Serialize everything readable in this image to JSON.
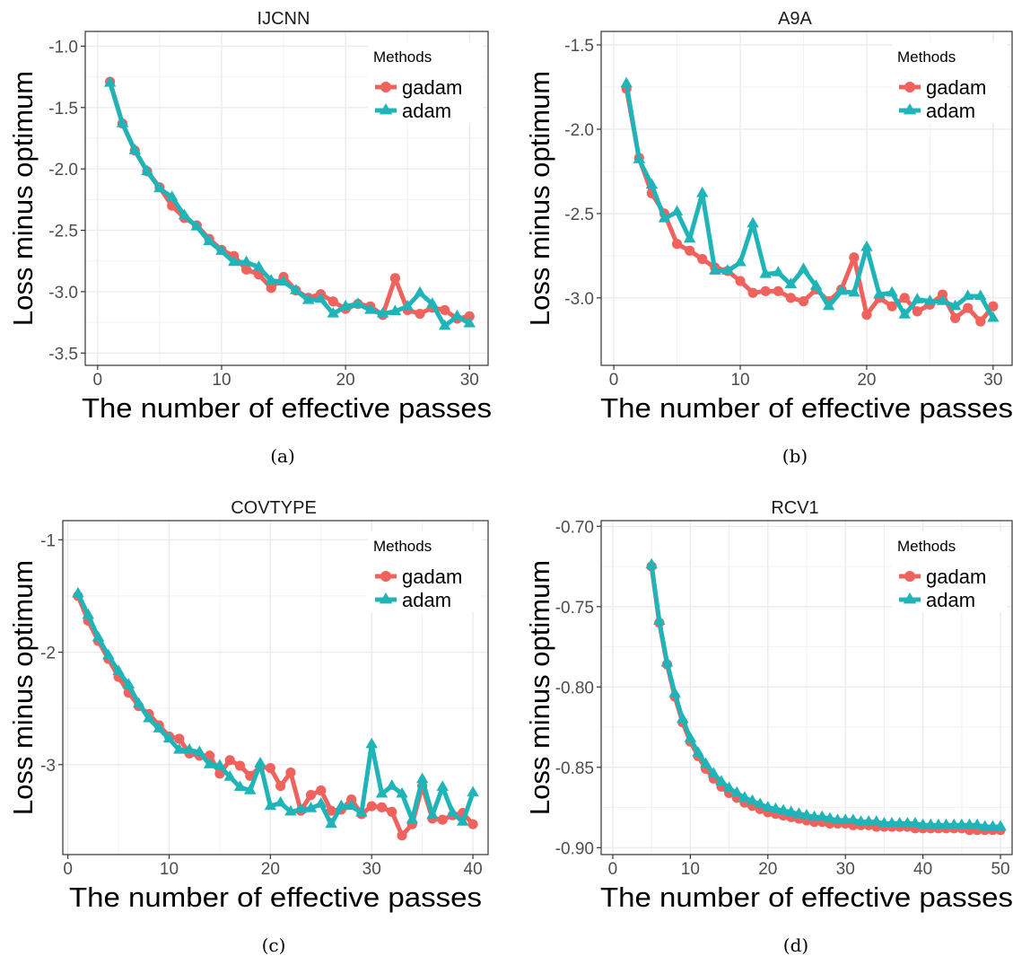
{
  "colors": {
    "gadam": "#F0625D",
    "adam": "#1FB5B8",
    "grid": "#EBEBEB",
    "panel_border": "#333333"
  },
  "legend": {
    "title": "Methods",
    "items": [
      {
        "label": "gadam",
        "shape": "circle",
        "color": "#F0625D"
      },
      {
        "label": "adam",
        "shape": "triangle",
        "color": "#1FB5B8"
      }
    ]
  },
  "chart_data": [
    {
      "type": "line",
      "title": "IJCNN",
      "caption": "(a)",
      "xlabel": "The number of effective passes",
      "ylabel": "Loss minus optimum",
      "xlim": [
        -1,
        31.5
      ],
      "ylim": [
        -3.6,
        -0.88
      ],
      "xticks": [
        0,
        10,
        20,
        30
      ],
      "xtick_labels": [
        "0",
        "10",
        "20",
        "30"
      ],
      "yticks": [
        -1.0,
        -1.5,
        -2.0,
        -2.5,
        -3.0,
        -3.5
      ],
      "ytick_labels": [
        "-1.0",
        "-1.5",
        "-2.0",
        "-2.5",
        "-3.0",
        "-3.5"
      ],
      "legend": "top-right",
      "grid": true,
      "x": [
        1,
        2,
        3,
        4,
        5,
        6,
        7,
        8,
        9,
        10,
        11,
        12,
        13,
        14,
        15,
        16,
        17,
        18,
        19,
        20,
        21,
        22,
        23,
        24,
        25,
        26,
        27,
        28,
        29,
        30
      ],
      "series": [
        {
          "name": "gadam",
          "values": [
            -1.29,
            -1.63,
            -1.85,
            -2.02,
            -2.15,
            -2.3,
            -2.4,
            -2.46,
            -2.57,
            -2.66,
            -2.71,
            -2.82,
            -2.86,
            -2.97,
            -2.88,
            -2.99,
            -3.05,
            -3.02,
            -3.08,
            -3.14,
            -3.1,
            -3.12,
            -3.19,
            -2.89,
            -3.15,
            -3.18,
            -3.13,
            -3.15,
            -3.22,
            -3.2
          ]
        },
        {
          "name": "adam",
          "values": [
            -1.3,
            -1.63,
            -1.85,
            -2.02,
            -2.16,
            -2.23,
            -2.38,
            -2.47,
            -2.59,
            -2.67,
            -2.76,
            -2.76,
            -2.8,
            -2.91,
            -2.92,
            -2.99,
            -3.07,
            -3.06,
            -3.18,
            -3.12,
            -3.1,
            -3.15,
            -3.18,
            -3.16,
            -3.12,
            -3.01,
            -3.1,
            -3.28,
            -3.2,
            -3.26
          ]
        }
      ]
    },
    {
      "type": "line",
      "title": "A9A",
      "caption": "(b)",
      "xlabel": "The number of effective passes",
      "ylabel": "Loss minus optimum",
      "xlim": [
        -1,
        31.5
      ],
      "ylim": [
        -3.4,
        -1.42
      ],
      "xticks": [
        0,
        10,
        20,
        30
      ],
      "xtick_labels": [
        "0",
        "10",
        "20",
        "30"
      ],
      "yticks": [
        -1.5,
        -2.0,
        -2.5,
        -3.0
      ],
      "ytick_labels": [
        "-1.5",
        "-2.0",
        "-2.5",
        "-3.0"
      ],
      "legend": "top-right",
      "grid": true,
      "x": [
        1,
        2,
        3,
        4,
        5,
        6,
        7,
        8,
        9,
        10,
        11,
        12,
        13,
        14,
        15,
        16,
        17,
        18,
        19,
        20,
        21,
        22,
        23,
        24,
        25,
        26,
        27,
        28,
        29,
        30
      ],
      "series": [
        {
          "name": "gadam",
          "values": [
            -1.76,
            -2.17,
            -2.38,
            -2.5,
            -2.68,
            -2.72,
            -2.77,
            -2.82,
            -2.84,
            -2.9,
            -2.97,
            -2.96,
            -2.96,
            -3.0,
            -3.02,
            -2.95,
            -3.02,
            -2.95,
            -2.76,
            -3.1,
            -3.0,
            -3.05,
            -3.0,
            -3.08,
            -3.04,
            -2.98,
            -3.12,
            -3.06,
            -3.14,
            -3.05
          ]
        },
        {
          "name": "adam",
          "values": [
            -1.73,
            -2.18,
            -2.33,
            -2.53,
            -2.49,
            -2.65,
            -2.38,
            -2.84,
            -2.84,
            -2.79,
            -2.56,
            -2.86,
            -2.85,
            -2.92,
            -2.83,
            -2.93,
            -3.05,
            -2.96,
            -2.97,
            -2.7,
            -2.98,
            -2.97,
            -3.1,
            -3.01,
            -3.02,
            -3.02,
            -3.05,
            -2.99,
            -2.99,
            -3.12
          ]
        }
      ]
    },
    {
      "type": "line",
      "title": "COVTYPE",
      "caption": "(c)",
      "xlabel": "The number of effective passes",
      "ylabel": "Loss minus optimum",
      "xlim": [
        -0.5,
        41.5
      ],
      "ylim": [
        -3.8,
        -0.83
      ],
      "xticks": [
        0,
        10,
        20,
        30,
        40
      ],
      "xtick_labels": [
        "0",
        "10",
        "20",
        "30",
        "40"
      ],
      "yticks": [
        -1,
        -2,
        -3
      ],
      "ytick_labels": [
        "-1",
        "-2",
        "-3"
      ],
      "legend": "top-right",
      "grid": true,
      "x": [
        1,
        2,
        3,
        4,
        5,
        6,
        7,
        8,
        9,
        10,
        11,
        12,
        13,
        14,
        15,
        16,
        17,
        18,
        19,
        20,
        21,
        22,
        23,
        24,
        25,
        26,
        27,
        28,
        29,
        30,
        31,
        32,
        33,
        34,
        35,
        36,
        37,
        38,
        39,
        40
      ],
      "series": [
        {
          "name": "gadam",
          "values": [
            -1.5,
            -1.72,
            -1.9,
            -2.06,
            -2.22,
            -2.36,
            -2.48,
            -2.55,
            -2.65,
            -2.75,
            -2.77,
            -2.9,
            -2.92,
            -2.92,
            -3.08,
            -2.96,
            -3.01,
            -3.1,
            -3.02,
            -3.03,
            -3.19,
            -3.07,
            -3.41,
            -3.27,
            -3.23,
            -3.41,
            -3.4,
            -3.31,
            -3.44,
            -3.37,
            -3.38,
            -3.42,
            -3.63,
            -3.53,
            -3.19,
            -3.48,
            -3.49,
            -3.45,
            -3.43,
            -3.53
          ]
        },
        {
          "name": "adam",
          "values": [
            -1.48,
            -1.67,
            -1.87,
            -2.03,
            -2.17,
            -2.29,
            -2.46,
            -2.59,
            -2.68,
            -2.77,
            -2.87,
            -2.87,
            -2.89,
            -3.0,
            -3.01,
            -3.11,
            -3.2,
            -3.23,
            -2.99,
            -3.37,
            -3.34,
            -3.42,
            -3.4,
            -3.39,
            -3.35,
            -3.53,
            -3.37,
            -3.37,
            -3.43,
            -2.82,
            -3.26,
            -3.19,
            -3.26,
            -3.49,
            -3.13,
            -3.45,
            -3.2,
            -3.43,
            -3.51,
            -3.25
          ]
        }
      ]
    },
    {
      "type": "line",
      "title": "RCV1",
      "caption": "(d)",
      "xlabel": "The number of effective passes",
      "ylabel": "Loss minus optimum",
      "xlim": [
        -1.5,
        51.5
      ],
      "ylim": [
        -0.9043,
        -0.6965
      ],
      "xticks": [
        0,
        10,
        20,
        30,
        40,
        50
      ],
      "xtick_labels": [
        "0",
        "10",
        "20",
        "30",
        "40",
        "50"
      ],
      "yticks": [
        -0.7,
        -0.75,
        -0.8,
        -0.85,
        -0.9
      ],
      "ytick_labels": [
        "-0.70",
        "-0.75",
        "-0.80",
        "-0.85",
        "-0.90"
      ],
      "legend": "top-right",
      "grid": true,
      "x": [
        5,
        6,
        7,
        8,
        9,
        10,
        11,
        12,
        13,
        14,
        15,
        16,
        17,
        18,
        19,
        20,
        21,
        22,
        23,
        24,
        25,
        26,
        27,
        28,
        29,
        30,
        31,
        32,
        33,
        34,
        35,
        36,
        37,
        38,
        39,
        40,
        41,
        42,
        43,
        44,
        45,
        46,
        47,
        48,
        49,
        50
      ],
      "series": [
        {
          "name": "gadam",
          "values": [
            -0.725,
            -0.76,
            -0.786,
            -0.806,
            -0.822,
            -0.834,
            -0.843,
            -0.851,
            -0.857,
            -0.862,
            -0.866,
            -0.869,
            -0.872,
            -0.874,
            -0.876,
            -0.878,
            -0.879,
            -0.88,
            -0.881,
            -0.882,
            -0.883,
            -0.884,
            -0.884,
            -0.885,
            -0.885,
            -0.885,
            -0.886,
            -0.886,
            -0.886,
            -0.887,
            -0.887,
            -0.887,
            -0.887,
            -0.887,
            -0.888,
            -0.888,
            -0.888,
            -0.888,
            -0.888,
            -0.888,
            -0.888,
            -0.889,
            -0.889,
            -0.889,
            -0.889,
            -0.889
          ]
        },
        {
          "name": "adam",
          "values": [
            -0.724,
            -0.759,
            -0.785,
            -0.804,
            -0.82,
            -0.832,
            -0.841,
            -0.848,
            -0.854,
            -0.859,
            -0.863,
            -0.866,
            -0.869,
            -0.871,
            -0.873,
            -0.875,
            -0.876,
            -0.877,
            -0.878,
            -0.879,
            -0.88,
            -0.881,
            -0.881,
            -0.882,
            -0.883,
            -0.883,
            -0.883,
            -0.884,
            -0.884,
            -0.884,
            -0.885,
            -0.885,
            -0.885,
            -0.885,
            -0.885,
            -0.886,
            -0.886,
            -0.886,
            -0.886,
            -0.886,
            -0.886,
            -0.886,
            -0.886,
            -0.887,
            -0.887,
            -0.887
          ]
        }
      ]
    }
  ]
}
